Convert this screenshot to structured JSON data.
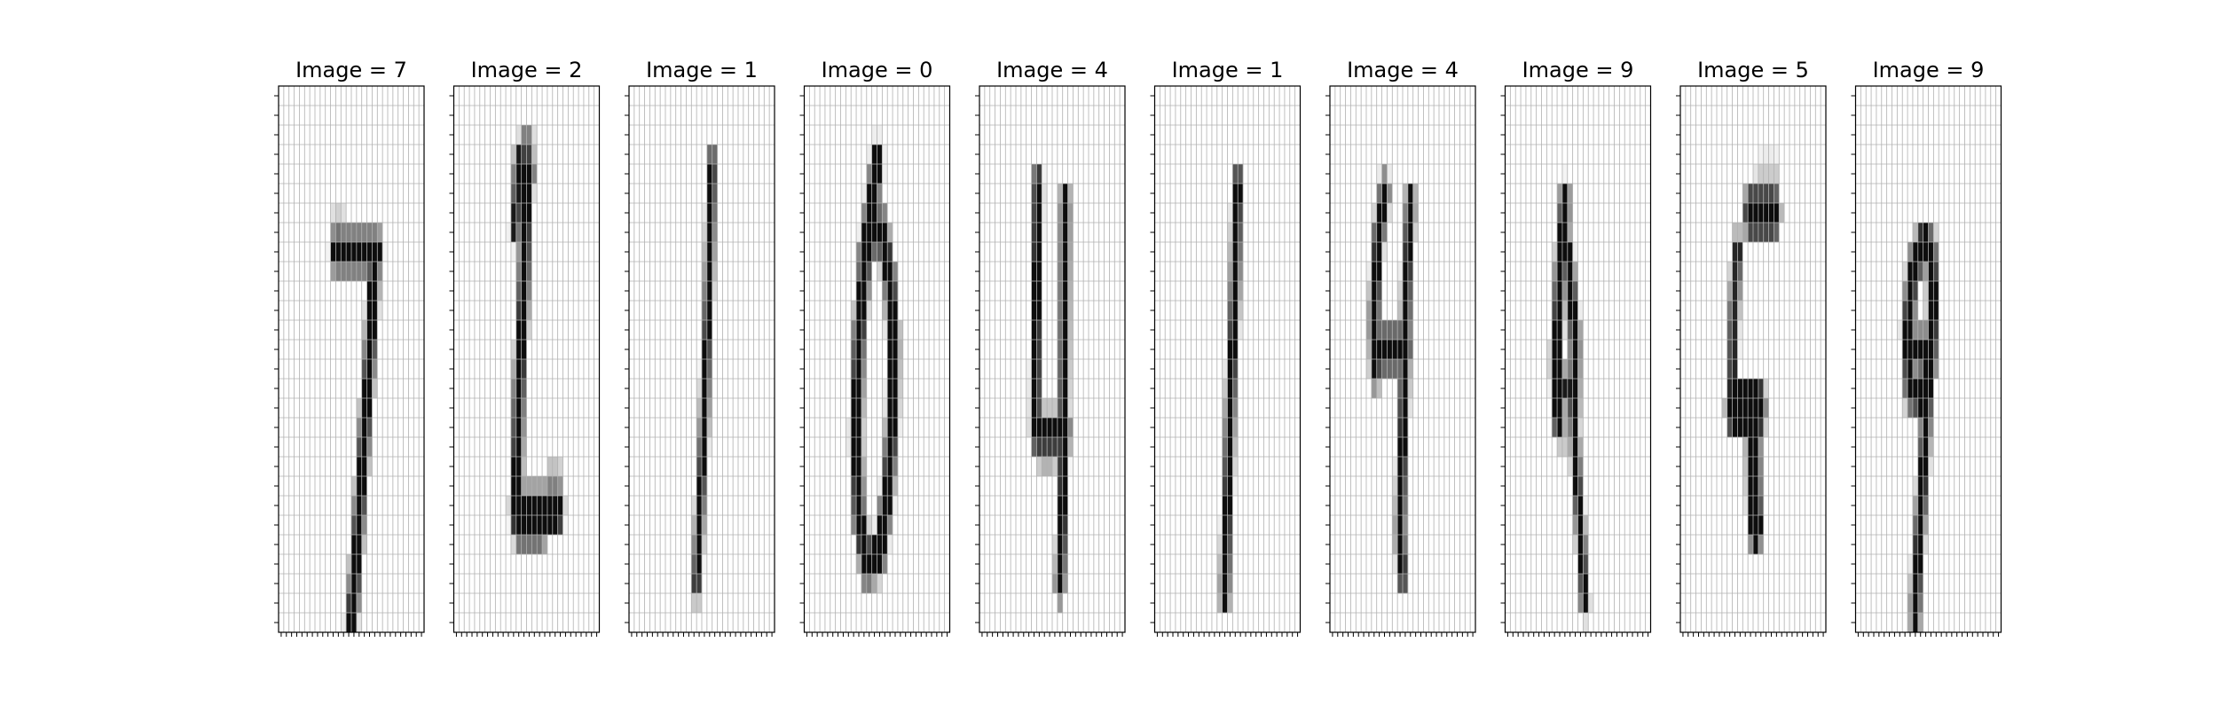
{
  "figure": {
    "title_prefix": "Image = ",
    "panels": [
      "7",
      "2",
      "1",
      "0",
      "4",
      "1",
      "4",
      "9",
      "5",
      "9"
    ]
  },
  "chart_data": {
    "type": "heatmap",
    "colormap": "gray_r",
    "grid": true,
    "rows": 28,
    "cols": 28,
    "value_range": [
      0,
      1
    ],
    "panels": [
      {
        "title": "Image = 7",
        "label": 7,
        "strokes": [
          {
            "pts": [
              [
                11,
                7.5
              ],
              [
                12,
                7.5
              ]
            ],
            "w": 0.9,
            "v": 0.55
          },
          {
            "pts": [
              [
                11,
                8.5
              ],
              [
                19,
                8.5
              ]
            ],
            "w": 1.3,
            "v": 0.95
          },
          {
            "pts": [
              [
                18.5,
                9
              ],
              [
                17.5,
                14
              ],
              [
                16,
                20
              ],
              [
                14.5,
                26
              ],
              [
                14,
                27.3
              ]
            ],
            "w": 1.4,
            "v": 0.95
          }
        ]
      },
      {
        "title": "Image = 2",
        "label": 2,
        "strokes": [
          {
            "pts": [
              [
                13.5,
                3.2
              ],
              [
                14.5,
                3.2
              ]
            ],
            "w": 1.0,
            "v": 0.75
          },
          {
            "pts": [
              [
                12.5,
                4.5
              ],
              [
                14.5,
                4.5
              ]
            ],
            "w": 1.3,
            "v": 0.95
          },
          {
            "pts": [
              [
                12.5,
                4
              ],
              [
                11.8,
                7.2
              ]
            ],
            "w": 1.0,
            "v": 0.9
          },
          {
            "pts": [
              [
                14,
                5
              ],
              [
                13.5,
                10
              ],
              [
                12.5,
                16
              ],
              [
                12,
                21.5
              ],
              [
                12,
                22
              ]
            ],
            "w": 1.4,
            "v": 0.95
          },
          {
            "pts": [
              [
                12,
                21.8
              ],
              [
                20,
                21.8
              ]
            ],
            "w": 1.6,
            "v": 0.95
          },
          {
            "pts": [
              [
                18.5,
                20.4
              ],
              [
                20,
                20.4
              ]
            ],
            "w": 1.0,
            "v": 0.5
          },
          {
            "pts": [
              [
                12.5,
                23
              ],
              [
                17,
                23
              ]
            ],
            "w": 1.0,
            "v": 0.55
          }
        ]
      },
      {
        "title": "Image = 1",
        "label": 1,
        "strokes": [
          {
            "pts": [
              [
                16,
                4
              ],
              [
                15.5,
                9
              ],
              [
                14.5,
                17
              ],
              [
                13,
                25.5
              ]
            ],
            "w": 0.9,
            "v": 0.95
          }
        ]
      },
      {
        "title": "Image = 0",
        "label": 0,
        "strokes": [
          {
            "pts": [
              [
                14,
                4
              ],
              [
                12,
                8
              ],
              [
                10.5,
                13
              ],
              [
                10,
                18
              ],
              [
                10.5,
                22
              ],
              [
                12,
                24.5
              ],
              [
                14.5,
                24
              ],
              [
                16,
                21
              ],
              [
                17,
                17
              ],
              [
                17.2,
                13
              ],
              [
                16.5,
                10
              ],
              [
                15,
                7.5
              ],
              [
                13,
                7.5
              ],
              [
                11.5,
                9
              ]
            ],
            "w": 1.5,
            "v": 0.95
          }
        ]
      },
      {
        "title": "Image = 4",
        "label": 4,
        "strokes": [
          {
            "pts": [
              [
                11.2,
                5
              ],
              [
                11,
                10
              ],
              [
                10.8,
                17.5
              ]
            ],
            "w": 1.1,
            "v": 0.95
          },
          {
            "pts": [
              [
                11,
                17.8
              ],
              [
                16.5,
                17.8
              ]
            ],
            "w": 1.3,
            "v": 0.95
          },
          {
            "pts": [
              [
                16.5,
                6
              ],
              [
                16.3,
                14
              ],
              [
                16,
                22
              ],
              [
                15.5,
                25.5
              ]
            ],
            "w": 1.1,
            "v": 0.95
          },
          {
            "pts": [
              [
                12,
                19.2
              ],
              [
                14,
                19.2
              ]
            ],
            "w": 0.8,
            "v": 0.3
          }
        ]
      },
      {
        "title": "Image = 1",
        "label": 1,
        "strokes": [
          {
            "pts": [
              [
                16,
                5
              ],
              [
                15.5,
                10
              ],
              [
                14.5,
                17
              ],
              [
                13.5,
                26
              ]
            ],
            "w": 1.1,
            "v": 0.95
          }
        ]
      },
      {
        "title": "Image = 4",
        "label": 4,
        "strokes": [
          {
            "pts": [
              [
                10.5,
                5.5
              ],
              [
                9.2,
                8
              ],
              [
                8.5,
                12
              ],
              [
                8.8,
                14.5
              ]
            ],
            "w": 1.2,
            "v": 0.95
          },
          {
            "pts": [
              [
                9,
                13.5
              ],
              [
                14.5,
                13.5
              ]
            ],
            "w": 1.5,
            "v": 0.95
          },
          {
            "pts": [
              [
                15.5,
                6
              ],
              [
                14.8,
                10
              ],
              [
                14.5,
                13.5
              ],
              [
                14,
                18
              ],
              [
                13.5,
                23
              ],
              [
                14,
                25
              ]
            ],
            "w": 1.1,
            "v": 0.95
          }
        ]
      },
      {
        "title": "Image = 9",
        "label": 9,
        "strokes": [
          {
            "pts": [
              [
                11.5,
                6
              ],
              [
                10.5,
                10
              ],
              [
                9.8,
                14
              ],
              [
                10.2,
                17
              ]
            ],
            "w": 1.3,
            "v": 0.95
          },
          {
            "pts": [
              [
                12,
                8.5
              ],
              [
                13.5,
                13
              ],
              [
                13.3,
                16.5
              ]
            ],
            "w": 1.2,
            "v": 0.95
          },
          {
            "pts": [
              [
                10.5,
                15.5
              ],
              [
                13,
                15.5
              ]
            ],
            "w": 1.0,
            "v": 0.9
          },
          {
            "pts": [
              [
                13,
                16
              ],
              [
                13.8,
                20
              ],
              [
                14.8,
                24
              ],
              [
                15.3,
                26.3
              ]
            ],
            "w": 0.9,
            "v": 0.95
          },
          {
            "pts": [
              [
                10.8,
                17.8
              ],
              [
                11.2,
                17.8
              ]
            ],
            "w": 0.8,
            "v": 0.4
          }
        ]
      },
      {
        "title": "Image = 5",
        "label": 5,
        "strokes": [
          {
            "pts": [
              [
                13.5,
                6.5
              ],
              [
                18,
                6.5
              ]
            ],
            "w": 1.8,
            "v": 0.95
          },
          {
            "pts": [
              [
                16,
                4.5
              ],
              [
                18,
                4.5
              ]
            ],
            "w": 1.0,
            "v": 0.2
          },
          {
            "pts": [
              [
                14.5,
                4.5
              ],
              [
                15.5,
                4.5
              ]
            ],
            "w": 0.8,
            "v": 0.1
          },
          {
            "pts": [
              [
                11,
                8.5
              ],
              [
                10.2,
                12
              ],
              [
                10,
                15.5
              ]
            ],
            "w": 1.1,
            "v": 0.85
          },
          {
            "pts": [
              [
                10.2,
                16.5
              ],
              [
                15,
                16.5
              ]
            ],
            "w": 2.2,
            "v": 0.95
          },
          {
            "pts": [
              [
                14,
                17
              ],
              [
                14.2,
                21
              ],
              [
                14.5,
                22.5
              ]
            ],
            "w": 2.0,
            "v": 0.95
          },
          {
            "pts": [
              [
                12.5,
                16
              ],
              [
                14,
                16
              ]
            ],
            "w": 0.8,
            "v": 0.3
          }
        ]
      },
      {
        "title": "Image = 9",
        "label": 9,
        "strokes": [
          {
            "pts": [
              [
                13,
                8
              ],
              [
                11,
                9.5
              ],
              [
                10,
                12.5
              ],
              [
                10.5,
                15.5
              ],
              [
                12.5,
                15.8
              ],
              [
                14.5,
                14
              ],
              [
                15,
                11
              ],
              [
                14.5,
                8.5
              ],
              [
                13,
                8
              ]
            ],
            "w": 1.4,
            "v": 0.95
          },
          {
            "pts": [
              [
                11,
                13.5
              ],
              [
                14.5,
                13.5
              ]
            ],
            "w": 1.2,
            "v": 0.95
          },
          {
            "pts": [
              [
                14,
                15
              ],
              [
                13,
                20
              ],
              [
                12,
                24
              ],
              [
                11.5,
                27
              ]
            ],
            "w": 1.2,
            "v": 0.95
          },
          {
            "pts": [
              [
                11,
                15.2
              ],
              [
                12.5,
                15.2
              ]
            ],
            "w": 0.8,
            "v": 0.4
          }
        ]
      }
    ]
  }
}
